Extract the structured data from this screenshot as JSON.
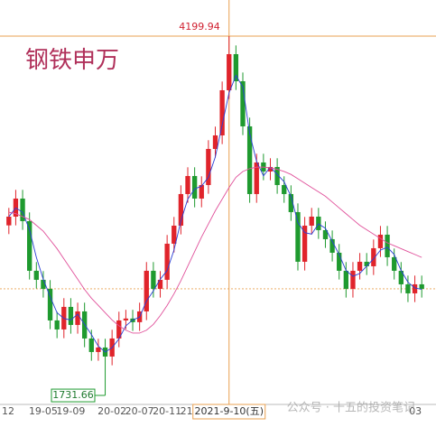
{
  "chart_data": {
    "type": "candlestick",
    "title": "钢铁申万",
    "categories": [
      "12",
      null,
      null,
      null,
      null,
      "19-05",
      null,
      null,
      null,
      "19-09",
      null,
      null,
      null,
      null,
      null,
      "20-02",
      null,
      null,
      null,
      "20-07",
      null,
      null,
      null,
      "20-11",
      null,
      null,
      null,
      "21-04",
      null,
      null,
      null,
      null,
      "2021-9-10(五)",
      null,
      null,
      null,
      null,
      null,
      null,
      null,
      null,
      null,
      null,
      null,
      null,
      null,
      null,
      null,
      null,
      null,
      null,
      null,
      null,
      null,
      null,
      null,
      null,
      null,
      null,
      null,
      "03"
    ],
    "open": [
      2900,
      2960,
      3084,
      2929,
      2588,
      2526,
      2464,
      2247,
      2185,
      2340,
      2216,
      2309,
      2123,
      2030,
      2061,
      1999,
      2123,
      2247,
      2260,
      2235,
      2309,
      2588,
      2464,
      2526,
      2774,
      2898,
      3115,
      3239,
      3084,
      3177,
      3425,
      3518,
      3828,
      4076,
      3890,
      3580,
      3115,
      3332,
      3270,
      3301,
      3177,
      3115,
      2991,
      2650,
      2898,
      2960,
      2867,
      2805,
      2712,
      2588,
      2464,
      2588,
      2650,
      2619,
      2743,
      2836,
      2681,
      2588,
      2495,
      2433,
      2495
    ],
    "high": [
      3020,
      3144,
      3144,
      2989,
      2648,
      2586,
      2524,
      2307,
      2400,
      2400,
      2369,
      2369,
      2183,
      2121,
      2121,
      2183,
      2307,
      2320,
      2320,
      2369,
      2648,
      2648,
      2586,
      2834,
      2958,
      3175,
      3299,
      3299,
      3237,
      3485,
      3578,
      3888,
      4199.94,
      4136,
      3950,
      3640,
      3392,
      3392,
      3361,
      3361,
      3237,
      3175,
      3051,
      2958,
      3020,
      3020,
      2927,
      2865,
      2772,
      2648,
      2648,
      2710,
      2710,
      2803,
      2896,
      2896,
      2741,
      2648,
      2555,
      2555,
      2555
    ],
    "low": [
      2840,
      2900,
      2869,
      2528,
      2466,
      2404,
      2187,
      2125,
      2125,
      2156,
      2156,
      2063,
      1970,
      1970,
      1731.66,
      1939,
      2063,
      2187,
      2175,
      2175,
      2249,
      2404,
      2404,
      2466,
      2714,
      2838,
      3055,
      3024,
      3024,
      3117,
      3365,
      3458,
      3768,
      3830,
      3520,
      3055,
      3055,
      3210,
      3210,
      3117,
      3055,
      2931,
      2590,
      2590,
      2838,
      2807,
      2745,
      2652,
      2528,
      2404,
      2404,
      2528,
      2559,
      2559,
      2683,
      2621,
      2528,
      2435,
      2373,
      2373,
      2404
    ],
    "close": [
      2960,
      3084,
      2929,
      2588,
      2526,
      2464,
      2247,
      2185,
      2340,
      2216,
      2309,
      2123,
      2030,
      2061,
      1999,
      2123,
      2247,
      2260,
      2235,
      2309,
      2588,
      2464,
      2526,
      2774,
      2898,
      3115,
      3239,
      3084,
      3177,
      3425,
      3518,
      3828,
      4076,
      3890,
      3580,
      3115,
      3332,
      3270,
      3301,
      3177,
      3115,
      2991,
      2650,
      2898,
      2960,
      2867,
      2805,
      2712,
      2588,
      2464,
      2588,
      2650,
      2619,
      2743,
      2836,
      2681,
      2588,
      2495,
      2433,
      2495,
      2464
    ],
    "up_color": "#e0242b",
    "down_color": "#1f9a2f",
    "series": [
      {
        "color": "#2a3fd6",
        "values": [
          2960,
          3020,
          2990,
          2870,
          2680,
          2530,
          2410,
          2300,
          2260,
          2250,
          2290,
          2220,
          2150,
          2070,
          2030,
          2060,
          2120,
          2210,
          2250,
          2270,
          2380,
          2450,
          2530,
          2590,
          2730,
          2930,
          3080,
          3150,
          3170,
          3230,
          3370,
          3590,
          3810,
          3930,
          3850,
          3530,
          3340,
          3240,
          3300,
          3250,
          3200,
          3100,
          2920,
          2850,
          2840,
          2910,
          2880,
          2790,
          2700,
          2590,
          2550,
          2570,
          2620,
          2670,
          2730,
          2750,
          2700,
          2590,
          2510,
          2470,
          2460
        ]
      },
      {
        "color": "#e0509a",
        "values": [
          2990,
          2980,
          2960,
          2940,
          2900,
          2860,
          2800,
          2740,
          2670,
          2600,
          2530,
          2460,
          2400,
          2350,
          2300,
          2250,
          2210,
          2180,
          2160,
          2160,
          2180,
          2220,
          2280,
          2350,
          2430,
          2520,
          2620,
          2720,
          2820,
          2910,
          3000,
          3080,
          3160,
          3230,
          3270,
          3290,
          3300,
          3300,
          3295,
          3285,
          3270,
          3250,
          3220,
          3190,
          3160,
          3130,
          3100,
          3060,
          3020,
          2980,
          2940,
          2900,
          2870,
          2840,
          2810,
          2780,
          2760,
          2740,
          2720,
          2700,
          2680
        ]
      }
    ],
    "max_label": {
      "value": 4199.94,
      "label": "4199.94"
    },
    "min_label": {
      "value": 1731.66,
      "label": "1731.66"
    },
    "watermark": "公众号 · 十五的投资笔记",
    "ylim": [
      1670,
      4448
    ]
  }
}
